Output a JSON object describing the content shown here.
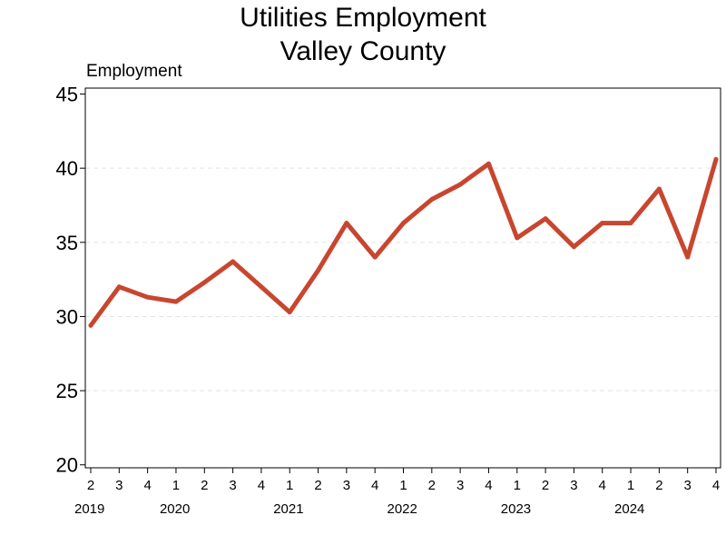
{
  "chart_data": {
    "type": "line",
    "title_lines": [
      "Utilities Employment",
      "Valley County"
    ],
    "ylabel": "Employment",
    "xlabel": "",
    "ylim": [
      19.8,
      45.4
    ],
    "yticks": [
      20,
      25,
      30,
      35,
      40,
      45
    ],
    "grid": "horizontal dashed",
    "color": "#c8462f",
    "x_quarter_labels": [
      "2",
      "3",
      "4",
      "1",
      "2",
      "3",
      "4",
      "1",
      "2",
      "3",
      "4",
      "1",
      "2",
      "3",
      "4",
      "1",
      "2",
      "3",
      "4",
      "1",
      "2",
      "3",
      "4"
    ],
    "year_labels": [
      {
        "year": "2019",
        "index": 0
      },
      {
        "year": "2020",
        "index": 3
      },
      {
        "year": "2021",
        "index": 7
      },
      {
        "year": "2022",
        "index": 11
      },
      {
        "year": "2023",
        "index": 15
      },
      {
        "year": "2024",
        "index": 19
      }
    ],
    "series": [
      {
        "values": [
          29.4,
          32.0,
          31.3,
          31.0,
          32.3,
          33.7,
          32.0,
          30.3,
          33.1,
          36.3,
          34.0,
          36.3,
          37.9,
          38.9,
          40.3,
          35.3,
          36.6,
          34.7,
          36.3,
          36.3,
          38.6,
          34.0,
          40.6
        ]
      }
    ]
  }
}
